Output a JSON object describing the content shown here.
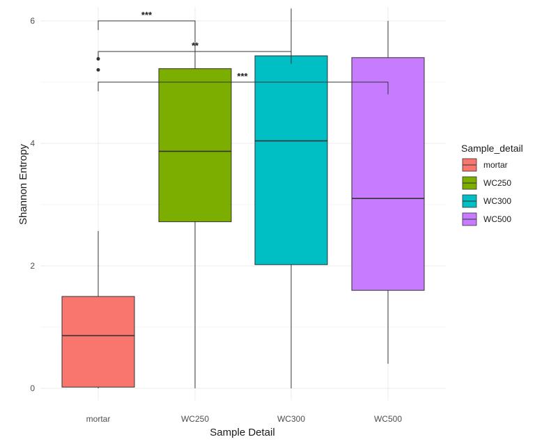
{
  "chart_data": {
    "type": "box",
    "xlabel": "Sample Detail",
    "ylabel": "Shannon Entropy",
    "ylim": [
      0,
      6.2
    ],
    "yticks": [
      "0",
      "2",
      "4",
      "6"
    ],
    "categories": [
      "mortar",
      "WC250",
      "WC300",
      "WC500"
    ],
    "boxes": [
      {
        "name": "mortar",
        "color": "#F8766D",
        "min": 0,
        "q1": 0.02,
        "median": 0.86,
        "q3": 1.5,
        "max": 2.57,
        "outliers": [
          5.2,
          5.38
        ]
      },
      {
        "name": "WC250",
        "color": "#7CAE00",
        "min": 0,
        "q1": 2.72,
        "median": 3.87,
        "q3": 5.22,
        "max": 6.0,
        "outliers": []
      },
      {
        "name": "WC300",
        "color": "#00BFC4",
        "min": 0,
        "q1": 2.02,
        "median": 4.04,
        "q3": 5.43,
        "max": 6.2,
        "outliers": []
      },
      {
        "name": "WC500",
        "color": "#C77CFF",
        "min": 0.4,
        "q1": 1.6,
        "median": 3.1,
        "q3": 5.4,
        "max": 6.0,
        "outliers": []
      }
    ],
    "significance": [
      {
        "from": "mortar",
        "to": "WC250",
        "label": "***",
        "y": 6.0,
        "drop_left": 5.85,
        "drop_right": 5.25
      },
      {
        "from": "mortar",
        "to": "WC300",
        "label": "**",
        "y": 5.5,
        "drop_left": 5.4,
        "drop_right": 5.3
      },
      {
        "from": "mortar",
        "to": "WC500",
        "label": "***",
        "y": 5.0,
        "drop_left": 4.85,
        "drop_right": 4.8
      }
    ],
    "legend": {
      "title": "Sample_detail",
      "position": "right",
      "items": [
        "mortar",
        "WC250",
        "WC300",
        "WC500"
      ]
    },
    "grid": true
  }
}
